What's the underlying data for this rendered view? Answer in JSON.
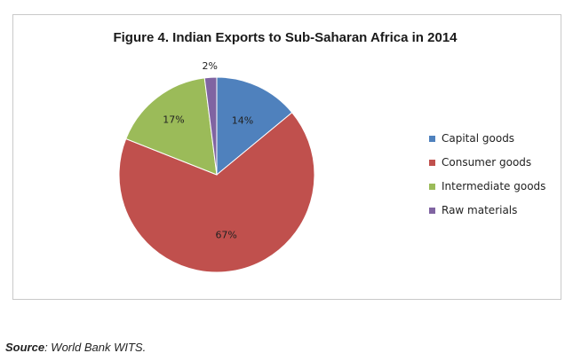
{
  "chart_data": {
    "type": "pie",
    "title": "Figure 4.  Indian Exports to Sub-Saharan Africa in 2014",
    "categories": [
      "Capital goods",
      "Consumer goods",
      "Intermediate goods",
      "Raw materials"
    ],
    "values": [
      14,
      67,
      17,
      2
    ],
    "data_labels": [
      "14%",
      "67%",
      "17%",
      "2%"
    ],
    "colors": [
      "#4f81bd",
      "#c0504d",
      "#9bbb59",
      "#8064a2"
    ],
    "legend_position": "right",
    "start_angle": "12 o'clock, clockwise"
  },
  "source": {
    "key": "Source",
    "text": ": World Bank WITS."
  }
}
